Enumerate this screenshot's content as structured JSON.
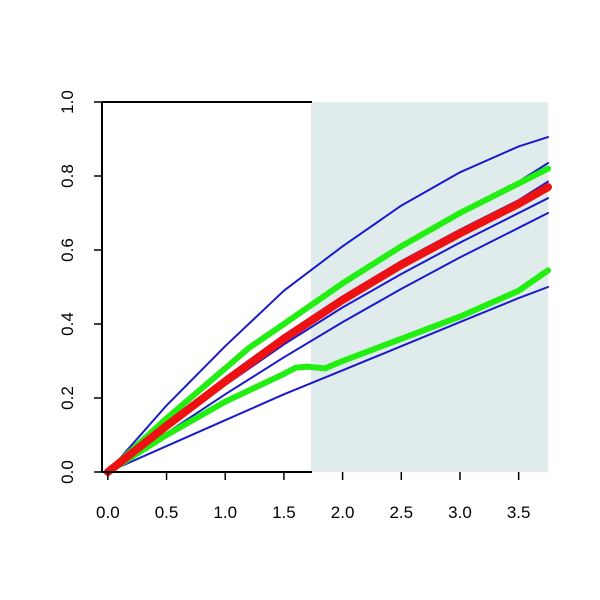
{
  "chart_data": {
    "type": "line",
    "title": "",
    "xlabel": "",
    "ylabel": "",
    "xlim": [
      -0.05,
      3.75
    ],
    "ylim": [
      0.0,
      1.0
    ],
    "x_ticks": [
      0.0,
      0.5,
      1.0,
      1.5,
      2.0,
      2.5,
      3.0,
      3.5
    ],
    "x_tick_labels": [
      "0.0",
      "0.5",
      "1.0",
      "1.5",
      "2.0",
      "2.5",
      "3.0",
      "3.5"
    ],
    "y_ticks": [
      0.0,
      0.2,
      0.4,
      0.6,
      0.8,
      1.0
    ],
    "y_tick_labels": [
      "0.0",
      "0.2",
      "0.4",
      "0.6",
      "0.8",
      "1.0"
    ],
    "grid": false,
    "legend": "none",
    "shaded_region": {
      "x_from": 1.73,
      "x_to": 3.75,
      "color": "#e0ecec"
    },
    "colors": {
      "blue": "#1a1acc",
      "red": "#ee1111",
      "green": "#22ee11",
      "axis": "#000000"
    },
    "series": [
      {
        "color": "#1a1acc",
        "width": 2,
        "x": [
          0,
          0.5,
          1.0,
          1.5,
          2.0,
          2.5,
          3.0,
          3.5,
          3.75
        ],
        "y": [
          0,
          0.18,
          0.34,
          0.49,
          0.61,
          0.72,
          0.81,
          0.88,
          0.905
        ]
      },
      {
        "color": "#1a1acc",
        "width": 2,
        "x": [
          0,
          0.5,
          1.0,
          1.5,
          2.0,
          2.5,
          3.0,
          3.5,
          3.75
        ],
        "y": [
          0,
          0.145,
          0.28,
          0.405,
          0.515,
          0.615,
          0.705,
          0.785,
          0.835
        ]
      },
      {
        "color": "#1a1acc",
        "width": 2,
        "x": [
          0,
          0.5,
          1.0,
          1.5,
          2.0,
          2.5,
          3.0,
          3.5,
          3.75
        ],
        "y": [
          0,
          0.13,
          0.255,
          0.37,
          0.475,
          0.57,
          0.655,
          0.735,
          0.785
        ]
      },
      {
        "color": "#1a1acc",
        "width": 2,
        "x": [
          0,
          0.5,
          1.0,
          1.5,
          2.0,
          2.5,
          3.0,
          3.5,
          3.75
        ],
        "y": [
          0,
          0.12,
          0.235,
          0.345,
          0.445,
          0.535,
          0.62,
          0.7,
          0.74
        ]
      },
      {
        "color": "#1a1acc",
        "width": 2,
        "x": [
          0,
          0.5,
          1.0,
          1.5,
          2.0,
          2.5,
          3.0,
          3.5,
          3.75
        ],
        "y": [
          0,
          0.105,
          0.21,
          0.31,
          0.405,
          0.495,
          0.58,
          0.66,
          0.7
        ]
      },
      {
        "color": "#1a1acc",
        "width": 2,
        "x": [
          0,
          0.5,
          1.0,
          1.5,
          2.0,
          2.5,
          3.0,
          3.5,
          3.75
        ],
        "y": [
          0,
          0.07,
          0.14,
          0.21,
          0.275,
          0.34,
          0.405,
          0.47,
          0.5
        ]
      },
      {
        "color": "#22ee11",
        "width": 6,
        "x": [
          0,
          0.5,
          1.0,
          1.2,
          1.5,
          2.0,
          2.5,
          3.0,
          3.5,
          3.75
        ],
        "y": [
          0,
          0.145,
          0.28,
          0.335,
          0.4,
          0.51,
          0.61,
          0.7,
          0.78,
          0.82
        ]
      },
      {
        "color": "#22ee11",
        "width": 6,
        "x": [
          0,
          0.5,
          1.0,
          1.5,
          1.6,
          1.7,
          1.75,
          1.85,
          2.0,
          2.5,
          3.0,
          3.5,
          3.75
        ],
        "y": [
          0,
          0.1,
          0.19,
          0.265,
          0.282,
          0.285,
          0.283,
          0.28,
          0.3,
          0.36,
          0.42,
          0.49,
          0.545
        ]
      },
      {
        "color": "#ee1111",
        "width": 8,
        "x": [
          0,
          0.5,
          1.0,
          1.5,
          2.0,
          2.5,
          3.0,
          3.5,
          3.75
        ],
        "y": [
          0,
          0.125,
          0.245,
          0.36,
          0.465,
          0.56,
          0.645,
          0.725,
          0.77
        ]
      }
    ]
  }
}
